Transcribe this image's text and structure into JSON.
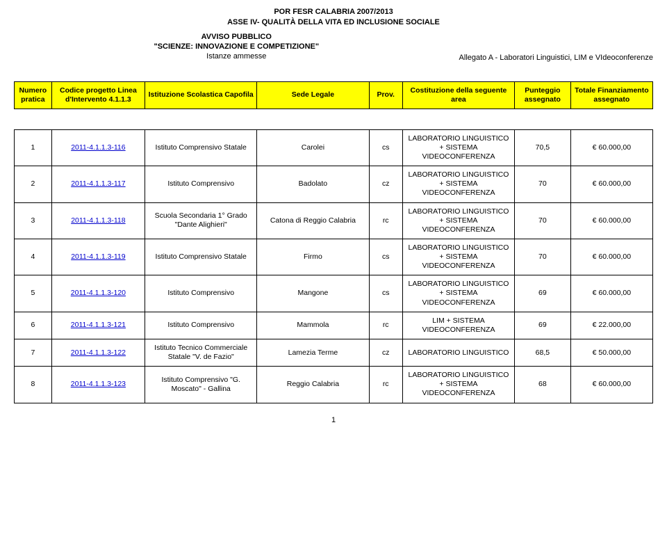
{
  "header": {
    "line1": "POR FESR CALABRIA 2007/2013",
    "line2": "ASSE IV- QUALITÀ DELLA VITA ED INCLUSIONE SOCIALE",
    "avviso_label": "AVVISO PUBBLICO",
    "avviso_title": "\"SCIENZE: INNOVAZIONE E COMPETIZIONE\"",
    "istanze": "Istanze ammesse",
    "allegato": "Allegato A -  Laboratori Linguistici, LIM e VIdeoconferenze"
  },
  "columns": [
    "Numero pratica",
    "Codice progetto Linea d'Intervento 4.1.1.3",
    "Istituzione Scolastica Capofila",
    "Sede Legale",
    "Prov.",
    "Costituzione della seguente area",
    "Punteggio assegnato",
    "Totale Finanziamento assegnato"
  ],
  "rows": [
    {
      "n": "1",
      "code": "2011-4.1.1.3-116",
      "inst": "Istituto Comprensivo Statale",
      "sede": "Carolei",
      "prov": "cs",
      "cost": "LABORATORIO LINGUISTICO + SISTEMA VIDEOCONFERENZA",
      "punt": "70,5",
      "tot": "€ 60.000,00"
    },
    {
      "n": "2",
      "code": "2011-4.1.1.3-117",
      "inst": "Istituto Comprensivo",
      "sede": "Badolato",
      "prov": "cz",
      "cost": "LABORATORIO LINGUISTICO + SISTEMA VIDEOCONFERENZA",
      "punt": "70",
      "tot": "€ 60.000,00"
    },
    {
      "n": "3",
      "code": "2011-4.1.1.3-118",
      "inst": "Scuola Secondaria 1° Grado \"Dante Alighieri\"",
      "sede": "Catona di Reggio Calabria",
      "prov": "rc",
      "cost": "LABORATORIO LINGUISTICO + SISTEMA VIDEOCONFERENZA",
      "punt": "70",
      "tot": "€ 60.000,00"
    },
    {
      "n": "4",
      "code": "2011-4.1.1.3-119",
      "inst": "Istituto Comprensivo Statale",
      "sede": "Firmo",
      "prov": "cs",
      "cost": "LABORATORIO LINGUISTICO + SISTEMA VIDEOCONFERENZA",
      "punt": "70",
      "tot": "€ 60.000,00"
    },
    {
      "n": "5",
      "code": "2011-4.1.1.3-120",
      "inst": "Istituto Comprensivo",
      "sede": "Mangone",
      "prov": "cs",
      "cost": "LABORATORIO LINGUISTICO + SISTEMA VIDEOCONFERENZA",
      "punt": "69",
      "tot": "€ 60.000,00"
    },
    {
      "n": "6",
      "code": "2011-4.1.1.3-121",
      "inst": "Istituto Comprensivo",
      "sede": "Mammola",
      "prov": "rc",
      "cost": "LIM + SISTEMA VIDEOCONFERENZA",
      "punt": "69",
      "tot": "€ 22.000,00"
    },
    {
      "n": "7",
      "code": "2011-4.1.1.3-122",
      "inst": "Istituto Tecnico Commerciale Statale \"V. de Fazio\"",
      "sede": "Lamezia Terme",
      "prov": "cz",
      "cost": "LABORATORIO LINGUISTICO",
      "punt": "68,5",
      "tot": "€ 50.000,00"
    },
    {
      "n": "8",
      "code": "2011-4.1.1.3-123",
      "inst": "Istituto Comprensivo \"G. Moscato\" - Gallina",
      "sede": "Reggio Calabria",
      "prov": "rc",
      "cost": "LABORATORIO LINGUISTICO + SISTEMA VIDEOCONFERENZA",
      "punt": "68",
      "tot": "€ 60.000,00"
    }
  ],
  "page_number": "1"
}
